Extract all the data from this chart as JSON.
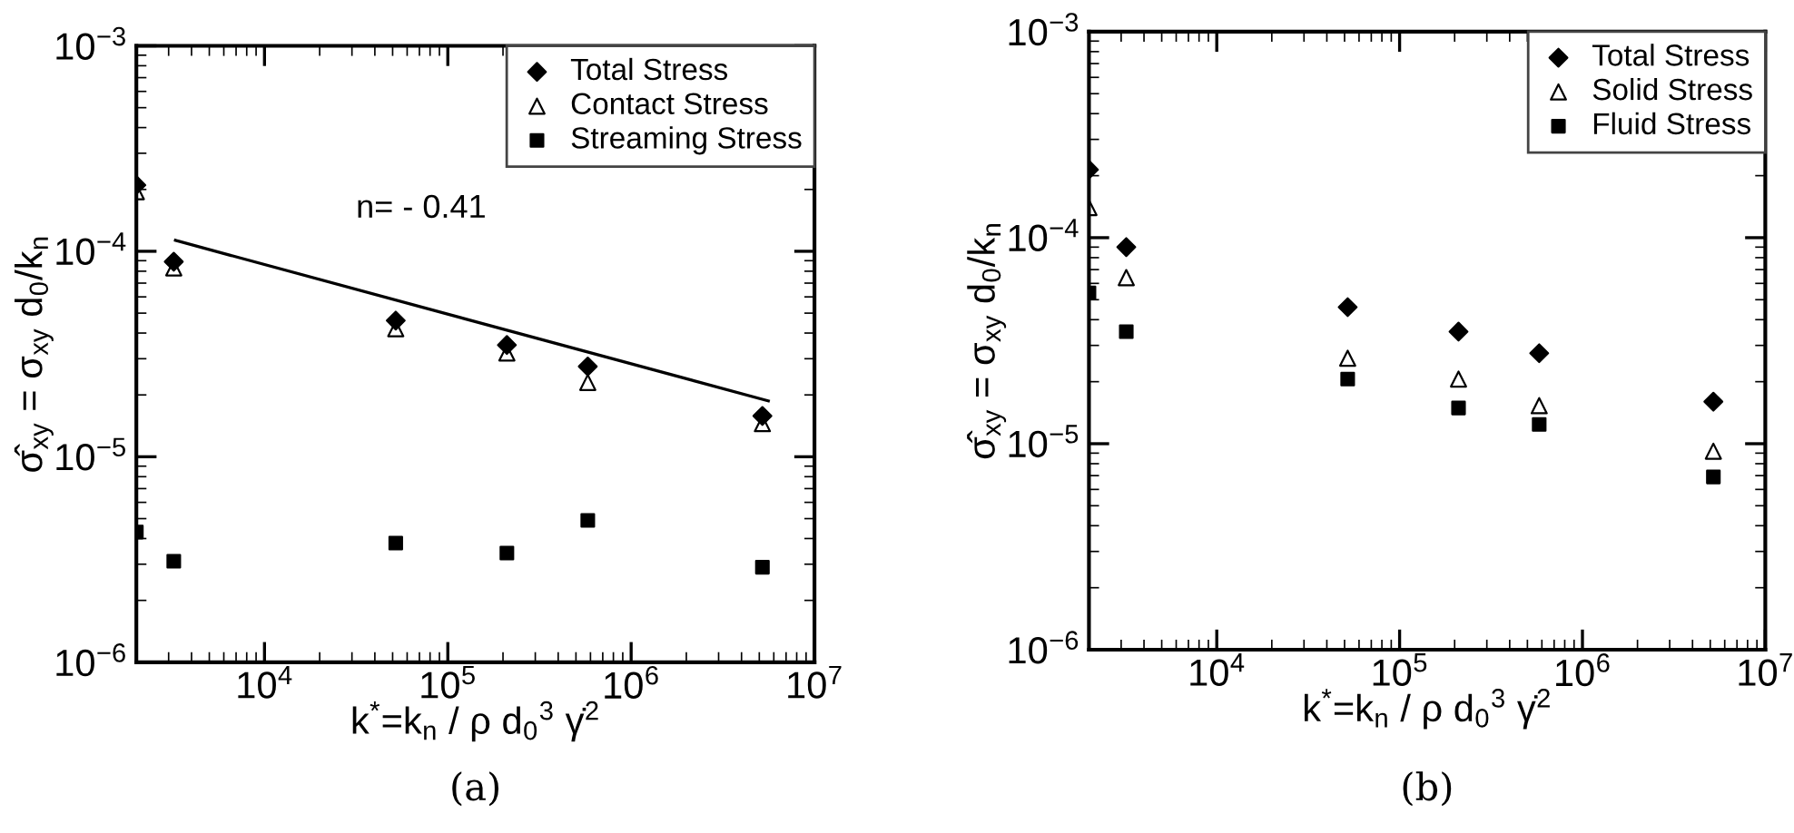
{
  "chart_data": [
    {
      "type": "scatter",
      "xlabel": "k$^{*}$=k$_{n}$ / ρ d$_{0}$$^{3}$ γ̇$^{2}$",
      "ylabel": "σ̂$_{xy}$ = σ$_{xy}$ d$_{0}$/k$_{n}$",
      "log": "xy",
      "legend": "top right",
      "grid": false,
      "xlim": [
        2000,
        10000000
      ],
      "ylim": [
        1e-06,
        0.001
      ],
      "xticks": [
        {
          "value": 10000,
          "label": "10$^{4}$"
        },
        {
          "value": 100000,
          "label": "10$^{5}$"
        },
        {
          "value": 1000000,
          "label": "10$^{6}$"
        },
        {
          "value": 10000000,
          "label": "10$^{7}$"
        }
      ],
      "yticks": [
        {
          "value": 1e-06,
          "label": "10$^{−6}$"
        },
        {
          "value": 1e-05,
          "label": "10$^{−5}$"
        },
        {
          "value": 0.0001,
          "label": "10$^{−4}$"
        },
        {
          "value": 0.001,
          "label": "10$^{−3}$"
        }
      ],
      "x": [
        2000,
        3200,
        52000,
        210000,
        580000,
        5200000
      ],
      "series": [
        {
          "name": "Total Stress",
          "color": "#000000",
          "marker": "diamond",
          "values": [
            0.00021,
            8.9e-05,
            4.6e-05,
            3.5e-05,
            2.75e-05,
            1.58e-05
          ]
        },
        {
          "name": "Contact Stress",
          "color": "#000000",
          "marker": "triangle",
          "values": [
            0.000195,
            8.3e-05,
            4.2e-05,
            3.2e-05,
            2.3e-05,
            1.45e-05
          ]
        },
        {
          "name": "Streaming Stress",
          "color": "#000000",
          "marker": "square",
          "values": [
            4.3e-06,
            3.1e-06,
            3.8e-06,
            3.4e-06,
            4.9e-06,
            2.9e-06
          ]
        },
        {
          "type": "line",
          "color": "#000000",
          "x": [
            3270,
            5600000
          ],
          "values": [
            0.000113,
            1.87e-05
          ]
        }
      ],
      "annotations": [
        "n= - 0.41",
        "(a)"
      ]
    },
    {
      "type": "scatter",
      "xlabel": "k$^{*}$=k$_{n}$ / ρ d$_{0}$$^{3}$ γ̇$^{2}$",
      "ylabel": "σ̂$_{xy}$ = σ$_{xy}$ d$_{0}$/k$_{n}$",
      "log": "xy",
      "legend": "top right",
      "grid": false,
      "xlim": [
        2000,
        10000000
      ],
      "ylim": [
        1e-06,
        0.001
      ],
      "xticks": [
        {
          "value": 10000,
          "label": "10$^{4}$"
        },
        {
          "value": 100000,
          "label": "10$^{5}$"
        },
        {
          "value": 1000000,
          "label": "10$^{6}$"
        },
        {
          "value": 10000000,
          "label": "10$^{7}$"
        }
      ],
      "yticks": [
        {
          "value": 1e-06,
          "label": "10$^{−6}$"
        },
        {
          "value": 1e-05,
          "label": "10$^{−5}$"
        },
        {
          "value": 0.0001,
          "label": "10$^{−4}$"
        },
        {
          "value": 0.001,
          "label": "10$^{−3}$"
        }
      ],
      "x": [
        2000,
        3200,
        52000,
        210000,
        580000,
        5200000
      ],
      "series": [
        {
          "name": "Total Stress",
          "color": "#000000",
          "marker": "diamond",
          "values": [
            0.000214,
            9e-05,
            4.6e-05,
            3.5e-05,
            2.75e-05,
            1.6e-05
          ]
        },
        {
          "name": "Solid Stress",
          "color": "#000000",
          "marker": "triangle",
          "values": [
            0.00014,
            6.4e-05,
            2.6e-05,
            2.06e-05,
            1.53e-05,
            9.2e-06
          ]
        },
        {
          "name": "Fluid Stress",
          "color": "#000000",
          "marker": "square",
          "values": [
            5.4e-05,
            3.5e-05,
            2.06e-05,
            1.49e-05,
            1.24e-05,
            6.9e-06
          ]
        }
      ],
      "annotations": [
        "(b)"
      ]
    }
  ]
}
